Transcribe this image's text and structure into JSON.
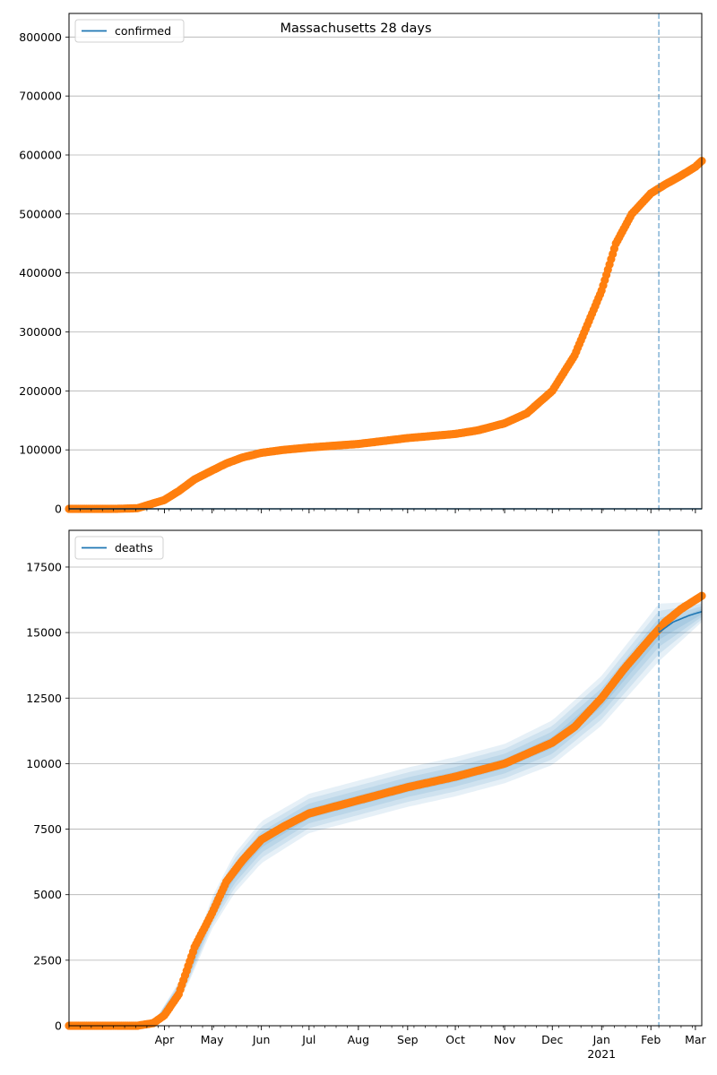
{
  "title": "Massachusetts 28 days",
  "chart_data": [
    {
      "type": "line",
      "name": "confirmed-panel",
      "legend": {
        "label": "confirmed",
        "placement": "upper-left"
      },
      "ylim": [
        0,
        840000
      ],
      "y_ticks": [
        0,
        100000,
        200000,
        300000,
        400000,
        500000,
        600000,
        700000,
        800000
      ],
      "y_tick_labels": [
        "0",
        "100000",
        "200000",
        "300000",
        "400000",
        "500000",
        "600000",
        "700000",
        "800000"
      ],
      "grid": "horizontal",
      "model_line_color": "#1f77b4",
      "observed_color": "#ff7f0e",
      "observed": {
        "x": [
          "2020-02-01",
          "2020-03-01",
          "2020-03-15",
          "2020-04-01",
          "2020-04-10",
          "2020-04-20",
          "2020-05-01",
          "2020-05-10",
          "2020-05-20",
          "2020-06-01",
          "2020-06-15",
          "2020-07-01",
          "2020-08-01",
          "2020-09-01",
          "2020-10-01",
          "2020-10-15",
          "2020-11-01",
          "2020-11-15",
          "2020-12-01",
          "2020-12-15",
          "2021-01-01",
          "2021-01-10",
          "2021-01-20",
          "2021-02-01",
          "2021-02-10",
          "2021-02-20",
          "2021-03-01",
          "2021-03-05"
        ],
        "y": [
          0,
          0,
          1000,
          15000,
          30000,
          50000,
          65000,
          77000,
          87000,
          95000,
          100000,
          104000,
          110000,
          120000,
          127000,
          133000,
          145000,
          162000,
          200000,
          260000,
          370000,
          450000,
          500000,
          535000,
          550000,
          565000,
          580000,
          590000
        ]
      },
      "model": {
        "x": [
          "2020-02-01",
          "2021-03-05"
        ],
        "y": [
          0,
          0
        ]
      },
      "forecast_start": "2021-02-06"
    },
    {
      "type": "line",
      "name": "deaths-panel",
      "legend": {
        "label": "deaths",
        "placement": "upper-left"
      },
      "ylim": [
        0,
        18900
      ],
      "y_ticks": [
        0,
        2500,
        5000,
        7500,
        10000,
        12500,
        15000,
        17500
      ],
      "y_tick_labels": [
        "0",
        "2500",
        "5000",
        "7500",
        "10000",
        "12500",
        "15000",
        "17500"
      ],
      "grid": "horizontal",
      "model_line_color": "#1f77b4",
      "band_color": "#1f77b4",
      "observed_color": "#ff7f0e",
      "observed": {
        "x": [
          "2020-02-01",
          "2020-03-15",
          "2020-03-25",
          "2020-04-01",
          "2020-04-10",
          "2020-04-20",
          "2020-05-01",
          "2020-05-10",
          "2020-05-20",
          "2020-06-01",
          "2020-06-15",
          "2020-07-01",
          "2020-08-01",
          "2020-09-01",
          "2020-10-01",
          "2020-11-01",
          "2020-12-01",
          "2020-12-15",
          "2021-01-01",
          "2021-01-15",
          "2021-02-01",
          "2021-02-10",
          "2021-02-20",
          "2021-03-05"
        ],
        "y": [
          0,
          0,
          100,
          400,
          1200,
          3000,
          4300,
          5500,
          6300,
          7100,
          7600,
          8100,
          8600,
          9100,
          9500,
          10000,
          10800,
          11400,
          12500,
          13600,
          14800,
          15400,
          15900,
          16400
        ]
      },
      "model": {
        "x": [
          "2021-02-06",
          "2021-02-15",
          "2021-02-25",
          "2021-03-05"
        ],
        "y": [
          15000,
          15400,
          15650,
          15800
        ]
      },
      "band": {
        "x": [
          "2020-03-25",
          "2020-04-15",
          "2020-05-01",
          "2020-05-15",
          "2020-06-01",
          "2020-07-01",
          "2020-08-01",
          "2020-09-01",
          "2020-10-01",
          "2020-11-01",
          "2020-12-01",
          "2021-01-01",
          "2021-02-06",
          "2021-03-05"
        ],
        "mid": [
          100,
          1800,
          4300,
          5800,
          7000,
          8100,
          8600,
          9100,
          9500,
          10000,
          10800,
          12400,
          15000,
          15800
        ],
        "spread": [
          0,
          350,
          600,
          750,
          800,
          750,
          750,
          750,
          750,
          750,
          850,
          950,
          1100,
          400
        ]
      },
      "forecast_start": "2021-02-06",
      "x_tick_labels": [
        "Apr",
        "May",
        "Jun",
        "Jul",
        "Aug",
        "Sep",
        "Oct",
        "Nov",
        "Dec",
        "Jan",
        "Feb",
        "Mar"
      ],
      "x_tick_dates": [
        "2020-04-01",
        "2020-05-01",
        "2020-06-01",
        "2020-07-01",
        "2020-08-01",
        "2020-09-01",
        "2020-10-01",
        "2020-11-01",
        "2020-12-01",
        "2021-01-01",
        "2021-02-01",
        "2021-03-01"
      ],
      "x_year_label": "2021"
    }
  ]
}
